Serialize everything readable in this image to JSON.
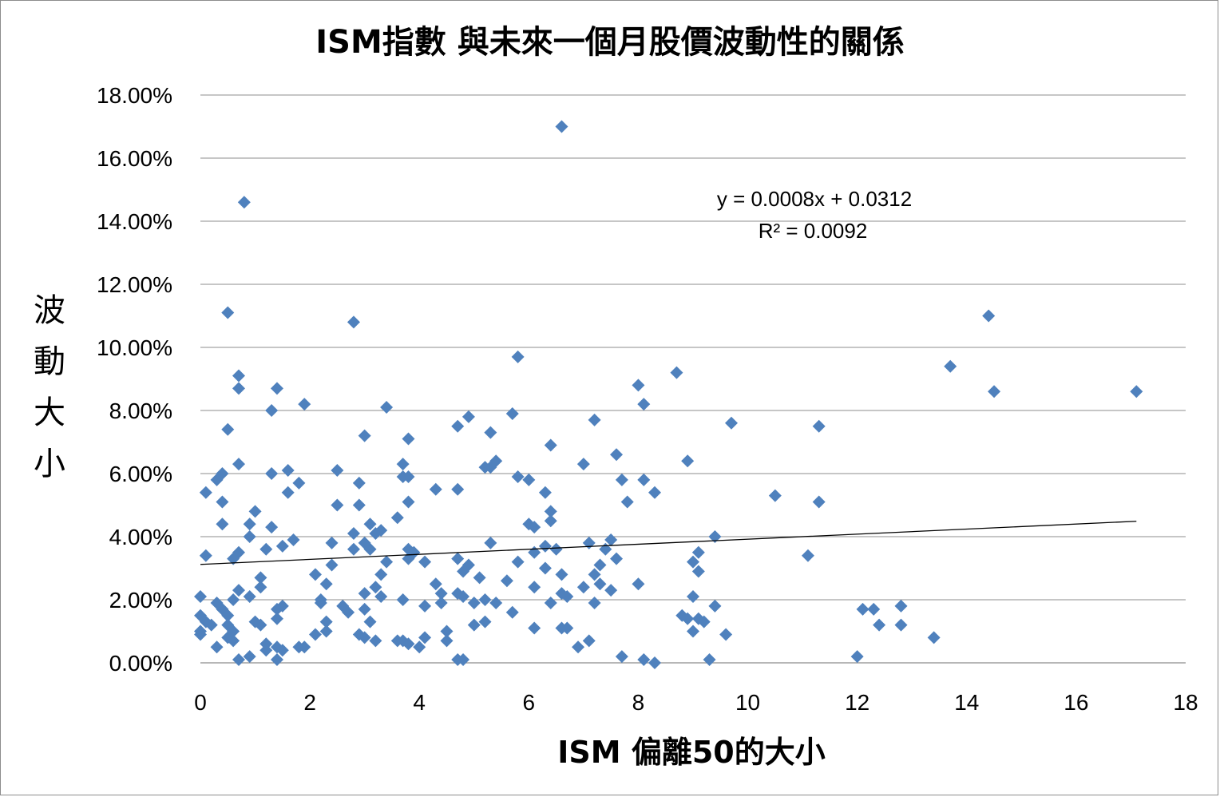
{
  "chart_data": {
    "type": "scatter",
    "title": "ISM指數 與未來一個月股價波動性的關係",
    "xlabel": "ISM 偏離50的大小",
    "ylabel": "波動大小",
    "xlim": [
      0,
      18
    ],
    "ylim": [
      0,
      0.18
    ],
    "x_ticks": [
      "0",
      "2",
      "4",
      "6",
      "8",
      "10",
      "12",
      "14",
      "16",
      "18"
    ],
    "y_ticks": [
      "0.00%",
      "2.00%",
      "4.00%",
      "6.00%",
      "8.00%",
      "10.00%",
      "12.00%",
      "14.00%",
      "16.00%",
      "18.00%"
    ],
    "grid": "horizontal",
    "marker_color": "#4F81BD",
    "trendline": {
      "slope": 0.0008,
      "intercept": 0.0312,
      "x_range": [
        0,
        17.1
      ],
      "equation_label": "y = 0.0008x + 0.0312",
      "r2_label": "R² = 0.0092"
    },
    "series": [
      {
        "points": [
          [
            0.0,
            0.021
          ],
          [
            0.0,
            0.015
          ],
          [
            0.0,
            0.01
          ],
          [
            0.0,
            0.009
          ],
          [
            0.1,
            0.034
          ],
          [
            0.1,
            0.054
          ],
          [
            0.1,
            0.013
          ],
          [
            0.2,
            0.012
          ],
          [
            0.3,
            0.019
          ],
          [
            0.3,
            0.005
          ],
          [
            0.3,
            0.058
          ],
          [
            0.4,
            0.06
          ],
          [
            0.4,
            0.051
          ],
          [
            0.4,
            0.044
          ],
          [
            0.4,
            0.017
          ],
          [
            0.5,
            0.015
          ],
          [
            0.5,
            0.012
          ],
          [
            0.5,
            0.111
          ],
          [
            0.5,
            0.074
          ],
          [
            0.5,
            0.008
          ],
          [
            0.6,
            0.033
          ],
          [
            0.6,
            0.02
          ],
          [
            0.6,
            0.01
          ],
          [
            0.6,
            0.007
          ],
          [
            0.7,
            0.091
          ],
          [
            0.7,
            0.087
          ],
          [
            0.7,
            0.063
          ],
          [
            0.7,
            0.035
          ],
          [
            0.7,
            0.023
          ],
          [
            0.7,
            0.001
          ],
          [
            0.8,
            0.146
          ],
          [
            0.9,
            0.044
          ],
          [
            0.9,
            0.04
          ],
          [
            0.9,
            0.021
          ],
          [
            0.9,
            0.002
          ],
          [
            1.0,
            0.048
          ],
          [
            1.0,
            0.013
          ],
          [
            1.1,
            0.027
          ],
          [
            1.1,
            0.024
          ],
          [
            1.1,
            0.012
          ],
          [
            1.2,
            0.036
          ],
          [
            1.2,
            0.006
          ],
          [
            1.2,
            0.004
          ],
          [
            1.3,
            0.08
          ],
          [
            1.3,
            0.06
          ],
          [
            1.3,
            0.043
          ],
          [
            1.4,
            0.087
          ],
          [
            1.4,
            0.017
          ],
          [
            1.4,
            0.014
          ],
          [
            1.4,
            0.005
          ],
          [
            1.4,
            0.001
          ],
          [
            1.5,
            0.037
          ],
          [
            1.5,
            0.018
          ],
          [
            1.5,
            0.004
          ],
          [
            1.6,
            0.061
          ],
          [
            1.6,
            0.054
          ],
          [
            1.7,
            0.039
          ],
          [
            1.8,
            0.057
          ],
          [
            1.8,
            0.005
          ],
          [
            1.9,
            0.082
          ],
          [
            1.9,
            0.005
          ],
          [
            2.1,
            0.028
          ],
          [
            2.1,
            0.009
          ],
          [
            2.2,
            0.02
          ],
          [
            2.2,
            0.019
          ],
          [
            2.3,
            0.025
          ],
          [
            2.3,
            0.013
          ],
          [
            2.3,
            0.01
          ],
          [
            2.4,
            0.038
          ],
          [
            2.4,
            0.031
          ],
          [
            2.5,
            0.061
          ],
          [
            2.5,
            0.05
          ],
          [
            2.6,
            0.018
          ],
          [
            2.7,
            0.016
          ],
          [
            2.8,
            0.108
          ],
          [
            2.8,
            0.041
          ],
          [
            2.8,
            0.036
          ],
          [
            2.9,
            0.057
          ],
          [
            2.9,
            0.05
          ],
          [
            2.9,
            0.009
          ],
          [
            3.0,
            0.072
          ],
          [
            3.0,
            0.038
          ],
          [
            3.0,
            0.022
          ],
          [
            3.0,
            0.017
          ],
          [
            3.0,
            0.008
          ],
          [
            3.1,
            0.044
          ],
          [
            3.1,
            0.036
          ],
          [
            3.1,
            0.013
          ],
          [
            3.2,
            0.041
          ],
          [
            3.2,
            0.024
          ],
          [
            3.2,
            0.007
          ],
          [
            3.3,
            0.042
          ],
          [
            3.3,
            0.028
          ],
          [
            3.3,
            0.021
          ],
          [
            3.4,
            0.081
          ],
          [
            3.4,
            0.032
          ],
          [
            3.6,
            0.046
          ],
          [
            3.6,
            0.007
          ],
          [
            3.7,
            0.063
          ],
          [
            3.7,
            0.059
          ],
          [
            3.7,
            0.02
          ],
          [
            3.7,
            0.007
          ],
          [
            3.8,
            0.071
          ],
          [
            3.8,
            0.059
          ],
          [
            3.8,
            0.051
          ],
          [
            3.8,
            0.036
          ],
          [
            3.8,
            0.033
          ],
          [
            3.8,
            0.006
          ],
          [
            3.9,
            0.035
          ],
          [
            4.0,
            0.005
          ],
          [
            4.1,
            0.032
          ],
          [
            4.1,
            0.018
          ],
          [
            4.1,
            0.008
          ],
          [
            4.3,
            0.055
          ],
          [
            4.3,
            0.025
          ],
          [
            4.4,
            0.022
          ],
          [
            4.4,
            0.019
          ],
          [
            4.5,
            0.01
          ],
          [
            4.5,
            0.007
          ],
          [
            4.7,
            0.075
          ],
          [
            4.7,
            0.055
          ],
          [
            4.7,
            0.033
          ],
          [
            4.7,
            0.022
          ],
          [
            4.7,
            0.001
          ],
          [
            4.8,
            0.029
          ],
          [
            4.8,
            0.021
          ],
          [
            4.8,
            0.001
          ],
          [
            4.9,
            0.078
          ],
          [
            4.9,
            0.031
          ],
          [
            5.0,
            0.019
          ],
          [
            5.0,
            0.012
          ],
          [
            5.1,
            0.027
          ],
          [
            5.2,
            0.062
          ],
          [
            5.2,
            0.02
          ],
          [
            5.2,
            0.013
          ],
          [
            5.3,
            0.073
          ],
          [
            5.3,
            0.062
          ],
          [
            5.3,
            0.038
          ],
          [
            5.4,
            0.064
          ],
          [
            5.4,
            0.019
          ],
          [
            5.6,
            0.026
          ],
          [
            5.7,
            0.079
          ],
          [
            5.7,
            0.016
          ],
          [
            5.8,
            0.097
          ],
          [
            5.8,
            0.059
          ],
          [
            5.8,
            0.032
          ],
          [
            6.0,
            0.058
          ],
          [
            6.0,
            0.044
          ],
          [
            6.1,
            0.043
          ],
          [
            6.1,
            0.035
          ],
          [
            6.1,
            0.024
          ],
          [
            6.1,
            0.011
          ],
          [
            6.3,
            0.054
          ],
          [
            6.3,
            0.037
          ],
          [
            6.3,
            0.03
          ],
          [
            6.4,
            0.069
          ],
          [
            6.4,
            0.048
          ],
          [
            6.4,
            0.045
          ],
          [
            6.4,
            0.019
          ],
          [
            6.5,
            0.036
          ],
          [
            6.6,
            0.17
          ],
          [
            6.6,
            0.028
          ],
          [
            6.6,
            0.022
          ],
          [
            6.6,
            0.011
          ],
          [
            6.7,
            0.021
          ],
          [
            6.7,
            0.011
          ],
          [
            6.9,
            0.005
          ],
          [
            7.0,
            0.063
          ],
          [
            7.0,
            0.024
          ],
          [
            7.1,
            0.038
          ],
          [
            7.1,
            0.007
          ],
          [
            7.2,
            0.077
          ],
          [
            7.2,
            0.028
          ],
          [
            7.2,
            0.019
          ],
          [
            7.3,
            0.031
          ],
          [
            7.3,
            0.025
          ],
          [
            7.4,
            0.036
          ],
          [
            7.5,
            0.039
          ],
          [
            7.5,
            0.023
          ],
          [
            7.6,
            0.066
          ],
          [
            7.6,
            0.033
          ],
          [
            7.7,
            0.058
          ],
          [
            7.7,
            0.002
          ],
          [
            7.8,
            0.051
          ],
          [
            8.0,
            0.088
          ],
          [
            8.0,
            0.025
          ],
          [
            8.1,
            0.082
          ],
          [
            8.1,
            0.058
          ],
          [
            8.1,
            0.001
          ],
          [
            8.3,
            0.054
          ],
          [
            8.3,
            0.0
          ],
          [
            8.7,
            0.092
          ],
          [
            8.8,
            0.015
          ],
          [
            8.9,
            0.064
          ],
          [
            8.9,
            0.014
          ],
          [
            9.0,
            0.032
          ],
          [
            9.0,
            0.021
          ],
          [
            9.0,
            0.01
          ],
          [
            9.1,
            0.035
          ],
          [
            9.1,
            0.029
          ],
          [
            9.1,
            0.014
          ],
          [
            9.2,
            0.013
          ],
          [
            9.3,
            0.001
          ],
          [
            9.4,
            0.04
          ],
          [
            9.4,
            0.018
          ],
          [
            9.6,
            0.009
          ],
          [
            9.7,
            0.076
          ],
          [
            10.5,
            0.053
          ],
          [
            11.1,
            0.034
          ],
          [
            11.3,
            0.075
          ],
          [
            11.3,
            0.051
          ],
          [
            12.0,
            0.002
          ],
          [
            12.1,
            0.017
          ],
          [
            12.3,
            0.017
          ],
          [
            12.4,
            0.012
          ],
          [
            12.8,
            0.018
          ],
          [
            12.8,
            0.012
          ],
          [
            13.4,
            0.008
          ],
          [
            13.7,
            0.094
          ],
          [
            14.4,
            0.11
          ],
          [
            14.5,
            0.086
          ],
          [
            17.1,
            0.086
          ]
        ]
      }
    ]
  }
}
